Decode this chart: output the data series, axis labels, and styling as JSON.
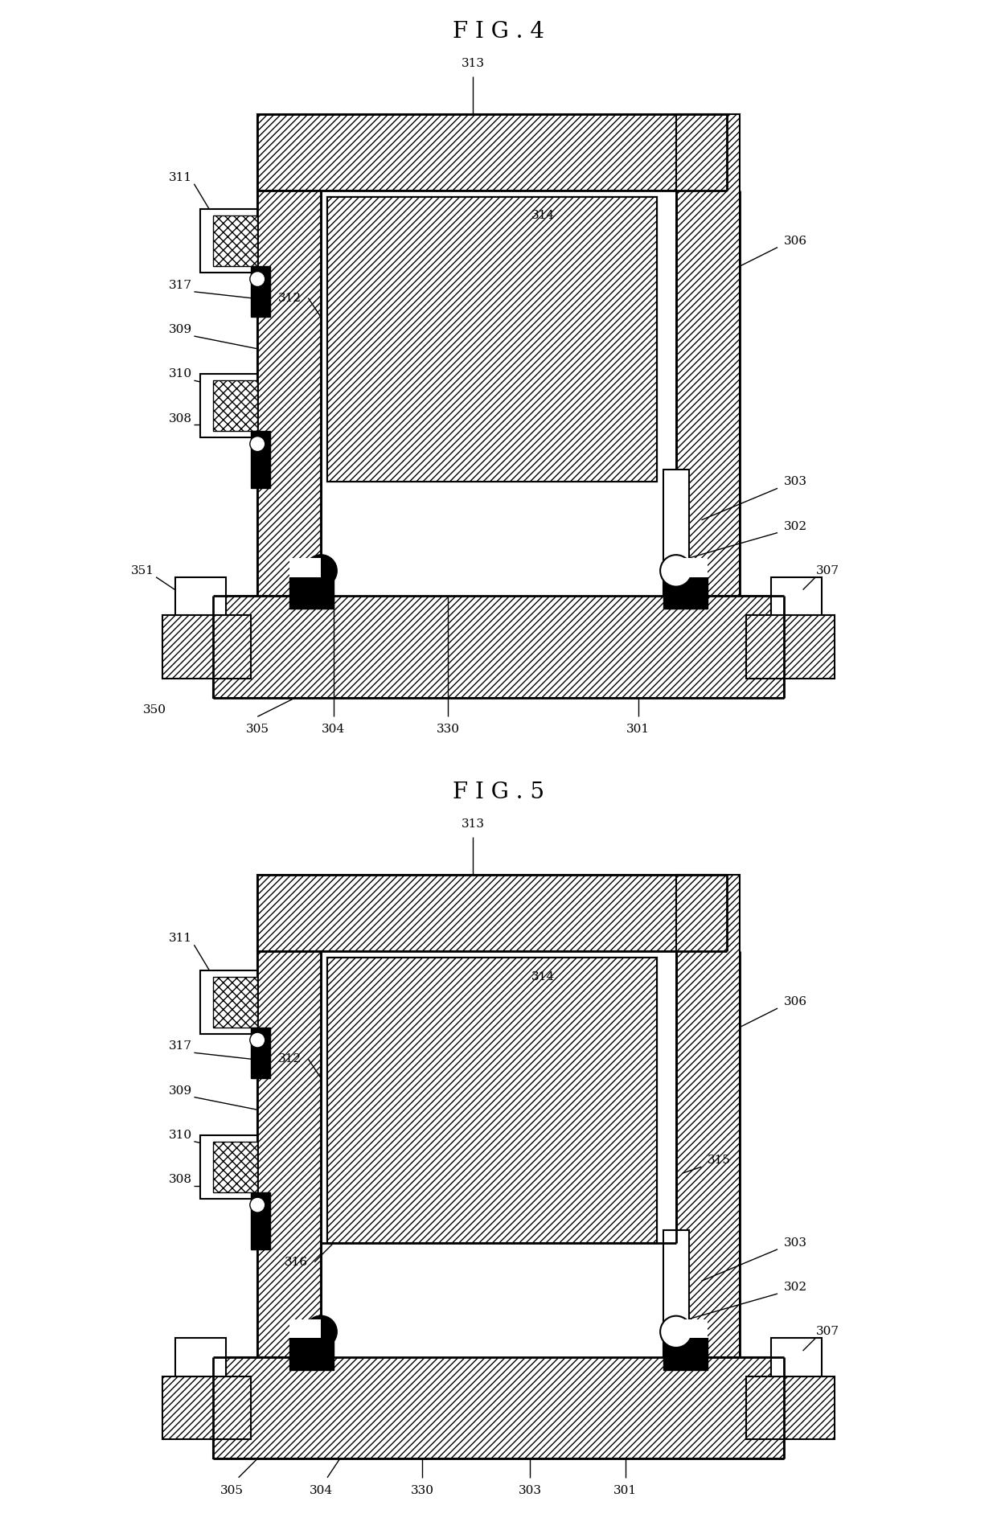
{
  "fig4_title": "F I G . 4",
  "fig5_title": "F I G . 5",
  "bg_color": "#ffffff",
  "fig_size": [
    12.4,
    18.93
  ],
  "dpi": 100
}
